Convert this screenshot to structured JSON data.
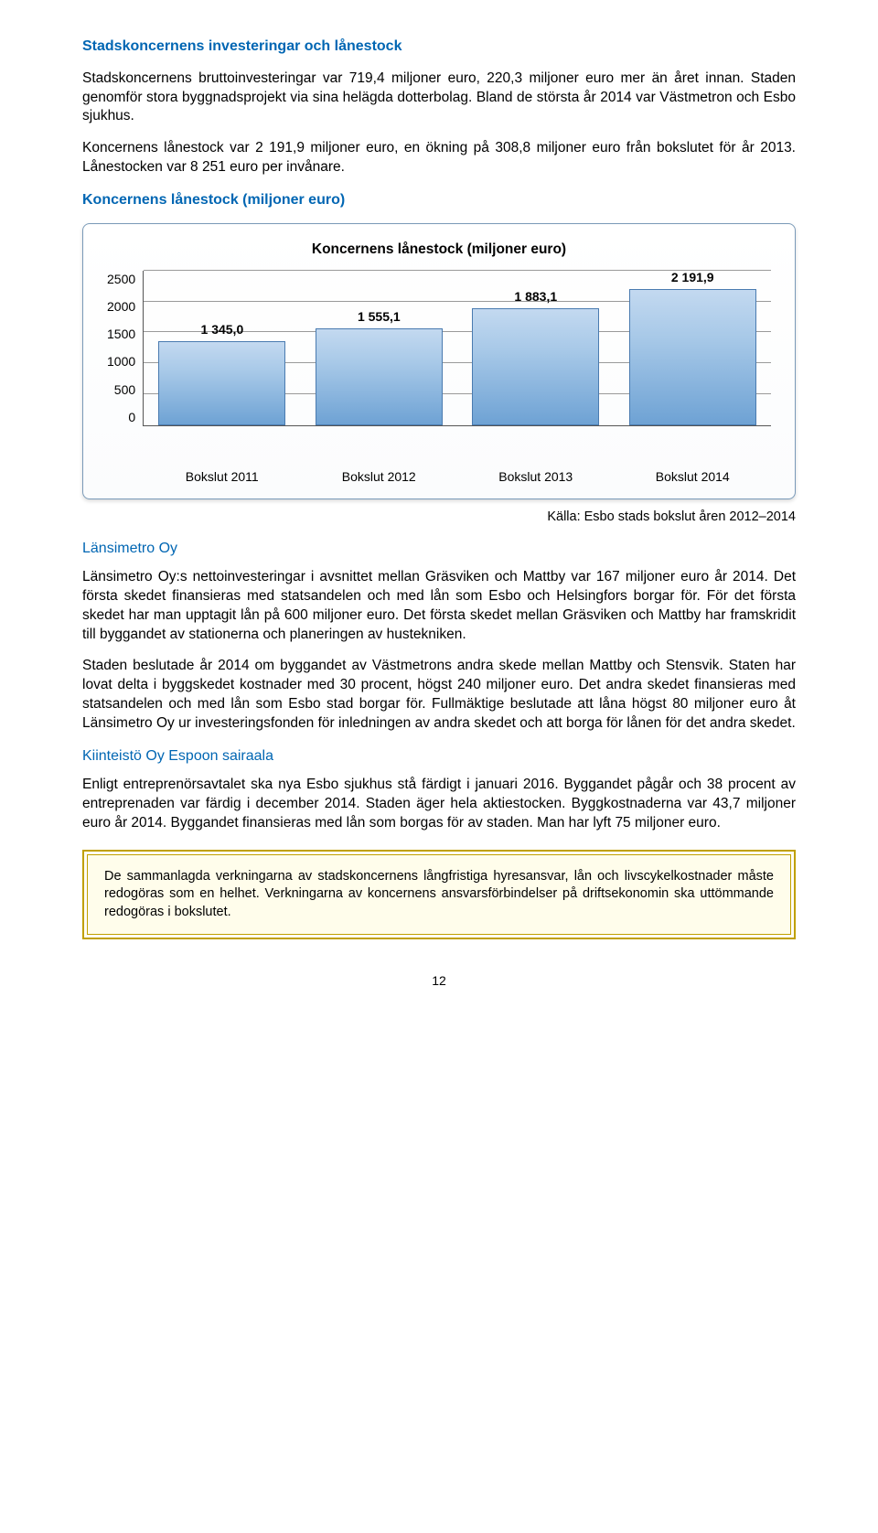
{
  "h1": "Stadskoncernens investeringar och lånestock",
  "p1": "Stadskoncernens bruttoinvesteringar var 719,4 miljoner euro, 220,3 miljoner euro mer än året innan. Staden genomför stora byggnadsprojekt via sina helägda dotterbolag. Bland de största år 2014 var Västmetron och Esbo sjukhus.",
  "p2": "Koncernens lånestock var 2 191,9 miljoner euro, en ökning på 308,8 miljoner euro från bokslutet för år 2013. Lånestocken var 8 251 euro per invånare.",
  "chart_heading": "Koncernens lånestock (miljoner euro)",
  "chart": {
    "type": "bar",
    "title": "Koncernens lånestock (miljoner euro)",
    "title_fontsize": 15.5,
    "categories": [
      "Bokslut 2011",
      "Bokslut 2012",
      "Bokslut 2013",
      "Bokslut 2014"
    ],
    "values": [
      1345.0,
      1555.1,
      1883.1,
      2191.9
    ],
    "value_labels": [
      "1 345,0",
      "1 555,1",
      "1 883,1",
      "2 191,9"
    ],
    "ylim": [
      0,
      2500
    ],
    "ytick_step": 500,
    "yticks": [
      "2500",
      "2000",
      "1500",
      "1000",
      "500",
      "0"
    ],
    "bar_fill_top": "#c3d9f0",
    "bar_fill_bottom": "#6ea2d4",
    "bar_border": "#4a7bb0",
    "grid_color": "#888888",
    "axis_color": "#555555",
    "background_color": "#ffffff",
    "label_fontsize": 14,
    "bar_width_pct": 92
  },
  "source": "Källa: Esbo stads bokslut åren 2012–2014",
  "h2": "Länsimetro Oy",
  "p3": "Länsimetro Oy:s nettoinvesteringar i avsnittet mellan Gräsviken och Mattby var 167 miljoner euro år 2014. Det första skedet finansieras med statsandelen och med lån som Esbo och Helsingfors borgar för. För det första skedet har man upptagit lån på 600 miljoner euro. Det första skedet mellan Gräsviken och Mattby har framskridit till byggandet av stationerna och planeringen av hustekniken.",
  "p4": "Staden beslutade år 2014 om byggandet av Västmetrons andra skede mellan Mattby och Stensvik. Staten har lovat delta i byggskedet kostnader med 30 procent, högst 240 miljoner euro. Det andra skedet finansieras med statsandelen och med lån som Esbo stad borgar för. Fullmäktige beslutade att låna högst 80 miljoner euro åt Länsimetro Oy ur investeringsfonden för inledningen av andra skedet och att borga för lånen för det andra skedet.",
  "h3": "Kiinteistö Oy Espoon sairaala",
  "p5": "Enligt entreprenörsavtalet ska nya Esbo sjukhus stå färdigt i januari 2016. Byggandet pågår och 38 procent av entreprenaden var färdig i december 2014. Staden äger hela aktiestocken. Byggkostnaderna var 43,7 miljoner euro år 2014. Byggandet finansieras med lån som borgas för av staden. Man har lyft 75 miljoner euro.",
  "callout": "De sammanlagda verkningarna av stadskoncernens långfristiga hyresansvar, lån och livscykelkostnader måste redogöras som en helhet. Verkningarna av koncernens ansvarsförbindelser på driftsekonomin ska uttömmande redogöras i bokslutet.",
  "page_number": "12"
}
